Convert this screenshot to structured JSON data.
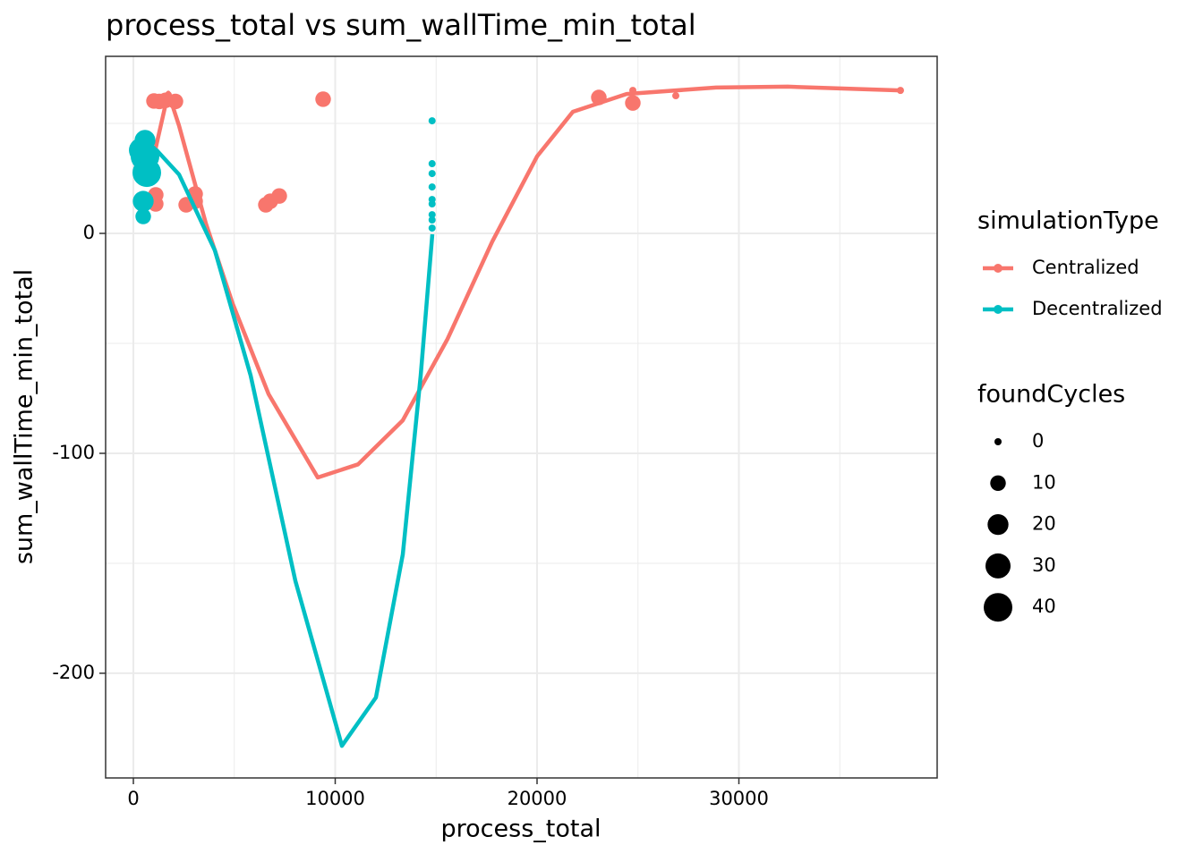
{
  "chart_data": {
    "type": "scatter",
    "title": "process_total  vs  sum_wallTime_min_total",
    "x_label": "process_total",
    "y_label": "sum_wallTime_min_total",
    "xlim": [
      -1375,
      39823
    ],
    "ylim": [
      -247.6,
      80.5
    ],
    "xticks": [
      0,
      10000,
      20000,
      30000
    ],
    "yticks": [
      0,
      -100,
      -200
    ],
    "xminor": [
      5000,
      15000,
      25000,
      35000
    ],
    "yminor": [
      50,
      -50,
      -150
    ],
    "grid": true,
    "legend_position": "right",
    "color_legend_title": "simulationType",
    "size_legend_title": "foundCycles",
    "size_ticks": [
      0,
      10,
      20,
      30,
      40
    ],
    "series": [
      {
        "name": "Centralized",
        "color": "#F8766D",
        "x": [
          1020,
          1286,
          1596,
          2084,
          1730,
          1108,
          1108,
          2616,
          3060,
          3060,
          6563,
          6785,
          7228,
          9401,
          23060,
          24745,
          24745,
          26874,
          38004
        ],
        "y": [
          60.2,
          60,
          60.5,
          60,
          63,
          17.5,
          13.4,
          13,
          17.9,
          14.6,
          13,
          14.6,
          17,
          61,
          61.8,
          59.3,
          65,
          62.6,
          65
        ],
        "size": [
          10,
          10,
          10,
          10,
          0,
          10,
          10,
          10,
          10,
          10,
          10,
          10,
          10,
          10,
          10,
          10,
          0,
          0,
          0
        ],
        "smooth_x": [
          710,
          1730,
          2262,
          3592,
          4922,
          6696,
          9135,
          11131,
          13348,
          15565,
          17783,
          20000,
          21774,
          24435,
          28870,
          32417,
          38004
        ],
        "smooth_y": [
          22.8,
          64,
          49,
          4.5,
          -32,
          -73,
          -111,
          -105,
          -85,
          -48,
          -3.7,
          35,
          55.3,
          63.4,
          66.3,
          66.7,
          65
        ]
      },
      {
        "name": "Decentralized",
        "color": "#00BFC4",
        "x": [
          576,
          576,
          665,
          488,
          488,
          400,
          14800,
          14800,
          14800,
          14800,
          14800,
          14800,
          14800,
          14800,
          14800
        ],
        "y": [
          42.3,
          35,
          27.6,
          14.6,
          7.7,
          37.8,
          51.2,
          31.7,
          27.2,
          21.1,
          15.4,
          13.4,
          8.5,
          6.1,
          2.4
        ],
        "size": [
          20,
          40,
          40,
          20,
          10,
          30,
          0,
          0,
          0,
          0,
          0,
          0,
          0,
          0,
          0
        ],
        "smooth_x": [
          133,
          1153,
          2262,
          4035,
          5809,
          8027,
          10333,
          12018,
          13348,
          14235,
          14812
        ],
        "smooth_y": [
          37.8,
          37.8,
          26.8,
          -7.7,
          -64.6,
          -158,
          -233,
          -211,
          -146,
          -64.6,
          -0.4
        ]
      }
    ]
  }
}
